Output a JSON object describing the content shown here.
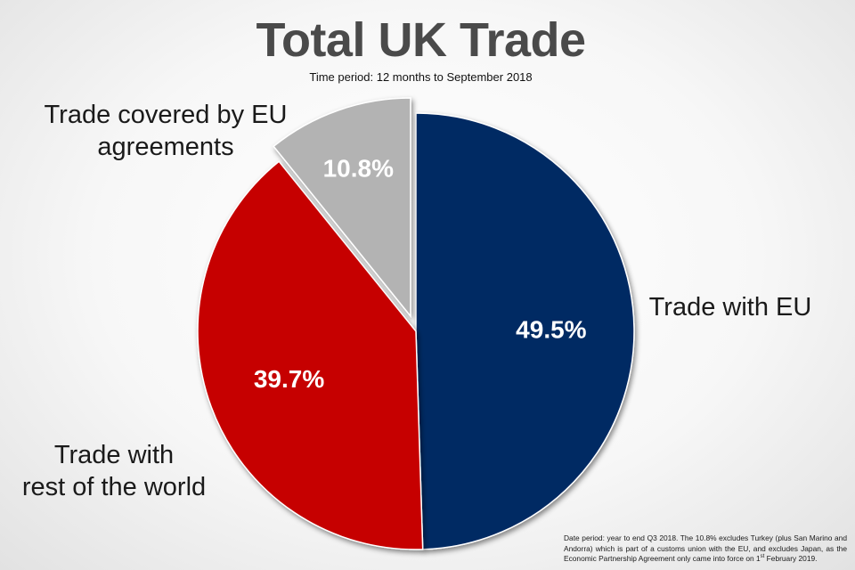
{
  "chart_data": {
    "type": "pie",
    "title": "Total UK Trade",
    "subtitle": "Time period: 12 months to September 2018",
    "slices": [
      {
        "name": "Trade with EU",
        "value": 49.5,
        "value_label": "49.5%",
        "color": "#052a64",
        "exploded": false
      },
      {
        "name": "Trade with rest of the world",
        "value": 39.7,
        "value_label": "39.7%",
        "color": "#c60000",
        "exploded": false
      },
      {
        "name": "Trade covered by EU agreements",
        "value": 10.8,
        "value_label": "10.8%",
        "color": "#b3b3b3",
        "exploded": true
      }
    ],
    "legend": "none"
  },
  "labels": {
    "trade_eu": [
      "Trade with EU"
    ],
    "trade_row": [
      "Trade with",
      "rest of the world"
    ],
    "trade_agreements": [
      "Trade covered by EU",
      "agreements"
    ]
  },
  "footnote": {
    "before": "Date period: year to end Q3 2018. The 10.8% excludes Turkey (plus San Marino and Andorra) which is part of a customs union with the EU, and excludes Japan, as the Economic Partnership Agreement only came into force on 1",
    "superscript": "st",
    "after": " February 2019."
  }
}
